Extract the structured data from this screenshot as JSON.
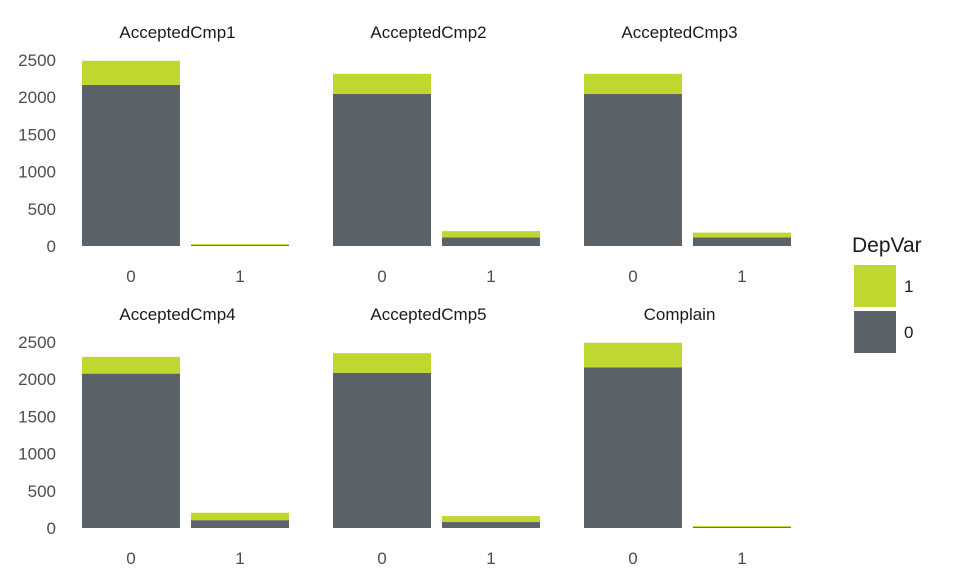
{
  "chart_data": {
    "type": "bar",
    "stacked": true,
    "facet_wrap": {
      "nrow": 2,
      "ncol": 3
    },
    "grid": false,
    "legend": {
      "title": "DepVar",
      "position": "right",
      "entries": [
        {
          "label": "1",
          "color": "#c0d72f"
        },
        {
          "label": "0",
          "color": "#5b6268"
        }
      ]
    },
    "ylim": [
      0,
      2500
    ],
    "yticks": [
      "0",
      "500",
      "1000",
      "1500",
      "2000",
      "2500"
    ],
    "facets": [
      {
        "title": "AcceptedCmp1",
        "categories": [
          "0",
          "1"
        ],
        "series": [
          {
            "name": "0",
            "values": [
              2165,
              20
            ]
          },
          {
            "name": "1",
            "values": [
              325,
              5
            ]
          }
        ]
      },
      {
        "title": "AcceptedCmp2",
        "categories": [
          "0",
          "1"
        ],
        "series": [
          {
            "name": "0",
            "values": [
              2045,
              115
            ]
          },
          {
            "name": "1",
            "values": [
              270,
              85
            ]
          }
        ]
      },
      {
        "title": "AcceptedCmp3",
        "categories": [
          "0",
          "1"
        ],
        "series": [
          {
            "name": "0",
            "values": [
              2045,
              115
            ]
          },
          {
            "name": "1",
            "values": [
              270,
              65
            ]
          }
        ]
      },
      {
        "title": "AcceptedCmp4",
        "categories": [
          "0",
          "1"
        ],
        "series": [
          {
            "name": "0",
            "values": [
              2075,
              105
            ]
          },
          {
            "name": "1",
            "values": [
              225,
              100
            ]
          }
        ]
      },
      {
        "title": "AcceptedCmp5",
        "categories": [
          "0",
          "1"
        ],
        "series": [
          {
            "name": "0",
            "values": [
              2085,
              80
            ]
          },
          {
            "name": "1",
            "values": [
              265,
              80
            ]
          }
        ]
      },
      {
        "title": "Complain",
        "categories": [
          "0",
          "1"
        ],
        "series": [
          {
            "name": "0",
            "values": [
              2160,
              20
            ]
          },
          {
            "name": "1",
            "values": [
              330,
              5
            ]
          }
        ]
      }
    ]
  }
}
